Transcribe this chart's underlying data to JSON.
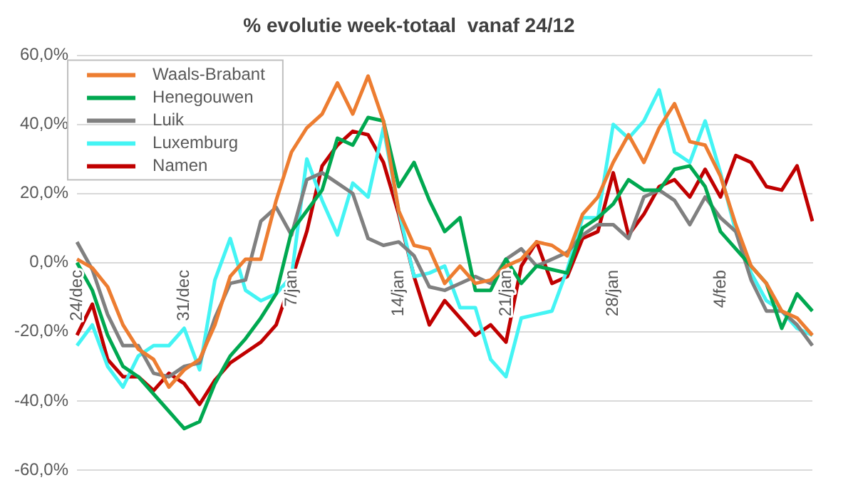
{
  "chart_data": {
    "type": "line",
    "title": "% evolutie week-totaal  vanaf 24/12",
    "categories": [
      "24/dec",
      null,
      null,
      null,
      null,
      null,
      null,
      "31/dec",
      null,
      null,
      null,
      null,
      null,
      null,
      "7/jan",
      null,
      null,
      null,
      null,
      null,
      null,
      "14/jan",
      null,
      null,
      null,
      null,
      null,
      null,
      "21/jan",
      null,
      null,
      null,
      null,
      null,
      null,
      "28/jan",
      null,
      null,
      null,
      null,
      null,
      null,
      "4/feb",
      null,
      null,
      null,
      null,
      null,
      null
    ],
    "series": [
      {
        "name": "Waals-Brabant",
        "color": "#ed7d31",
        "values": [
          1,
          -1.5,
          -7,
          -18,
          -25,
          -28,
          -36,
          -31,
          -28,
          -18,
          -4,
          1,
          1,
          18,
          32,
          39,
          43,
          52,
          43,
          54,
          41,
          15,
          5,
          4,
          -6,
          -1,
          -6,
          -5,
          -1,
          1,
          6,
          5,
          2,
          14,
          19,
          29,
          37,
          29,
          39,
          46,
          35,
          34,
          25,
          11,
          -1,
          -6,
          -14,
          -16,
          -21
        ]
      },
      {
        "name": "Henegouwen",
        "color": "#00a850",
        "values": [
          0,
          -8,
          -21,
          -30,
          -33,
          -38,
          -43,
          -48,
          -46,
          -35,
          -27,
          -22,
          -16,
          -9,
          9,
          15,
          21,
          36,
          34,
          42,
          41,
          22,
          29,
          18,
          9,
          13,
          -8,
          -8,
          1,
          -6,
          -1,
          -2,
          -3,
          10,
          13,
          17,
          24,
          21,
          21,
          27,
          28,
          22,
          9,
          4,
          -1,
          -6,
          -19,
          -9,
          -14
        ]
      },
      {
        "name": "Luik",
        "color": "#808080",
        "values": [
          6,
          -2,
          -15,
          -24,
          -24,
          -32,
          -33,
          -30,
          -29,
          -16,
          -6,
          -5,
          12,
          16,
          8,
          24,
          26,
          23,
          20,
          7,
          5,
          6,
          2,
          -7,
          -8,
          -6,
          -4,
          -6,
          1,
          4,
          -1,
          1,
          3,
          8,
          11,
          11,
          7,
          19,
          21,
          18,
          11,
          19,
          13,
          9,
          -5,
          -14,
          -14,
          -18,
          -24
        ]
      },
      {
        "name": "Luxemburg",
        "color": "#44f4f4",
        "values": [
          -24,
          -18,
          -30,
          -36,
          -27,
          -24,
          -24,
          -19,
          -31,
          -5,
          7,
          -8,
          -11,
          -9,
          -4,
          30,
          18,
          8,
          23,
          19,
          39,
          15,
          -4,
          -3,
          -1,
          -13,
          -13,
          -28,
          -33,
          -16,
          -15,
          -14,
          -2,
          13,
          13,
          40,
          36,
          41,
          50,
          32,
          29,
          41,
          26,
          9,
          -3,
          -11,
          -14,
          -19,
          -21
        ]
      },
      {
        "name": "Namen",
        "color": "#c00000",
        "values": [
          -21,
          -12,
          -28,
          -33,
          -33,
          -37,
          -32,
          -35,
          -41,
          -34,
          -29,
          -26,
          -23,
          -18,
          -5,
          9,
          28,
          34,
          38,
          37,
          29,
          14,
          -4,
          -18,
          -11,
          -16,
          -21,
          -18,
          -23,
          -1,
          6,
          -6,
          -4,
          7,
          9,
          26,
          8,
          14,
          22,
          24,
          19,
          27,
          19,
          31,
          29,
          22,
          21,
          28,
          12
        ]
      }
    ],
    "ylim": [
      -60,
      60
    ],
    "yticks": [
      {
        "value": -60,
        "label": "-60,0%"
      },
      {
        "value": -40,
        "label": "-40,0%"
      },
      {
        "value": -20,
        "label": "-20,0%"
      },
      {
        "value": 0,
        "label": "0,0%"
      },
      {
        "value": 20,
        "label": "20,0%"
      },
      {
        "value": 40,
        "label": "40,0%"
      },
      {
        "value": 60,
        "label": "60,0%"
      }
    ],
    "grid": "y",
    "legend": "top left",
    "marker": "none",
    "line_style": "solid"
  }
}
